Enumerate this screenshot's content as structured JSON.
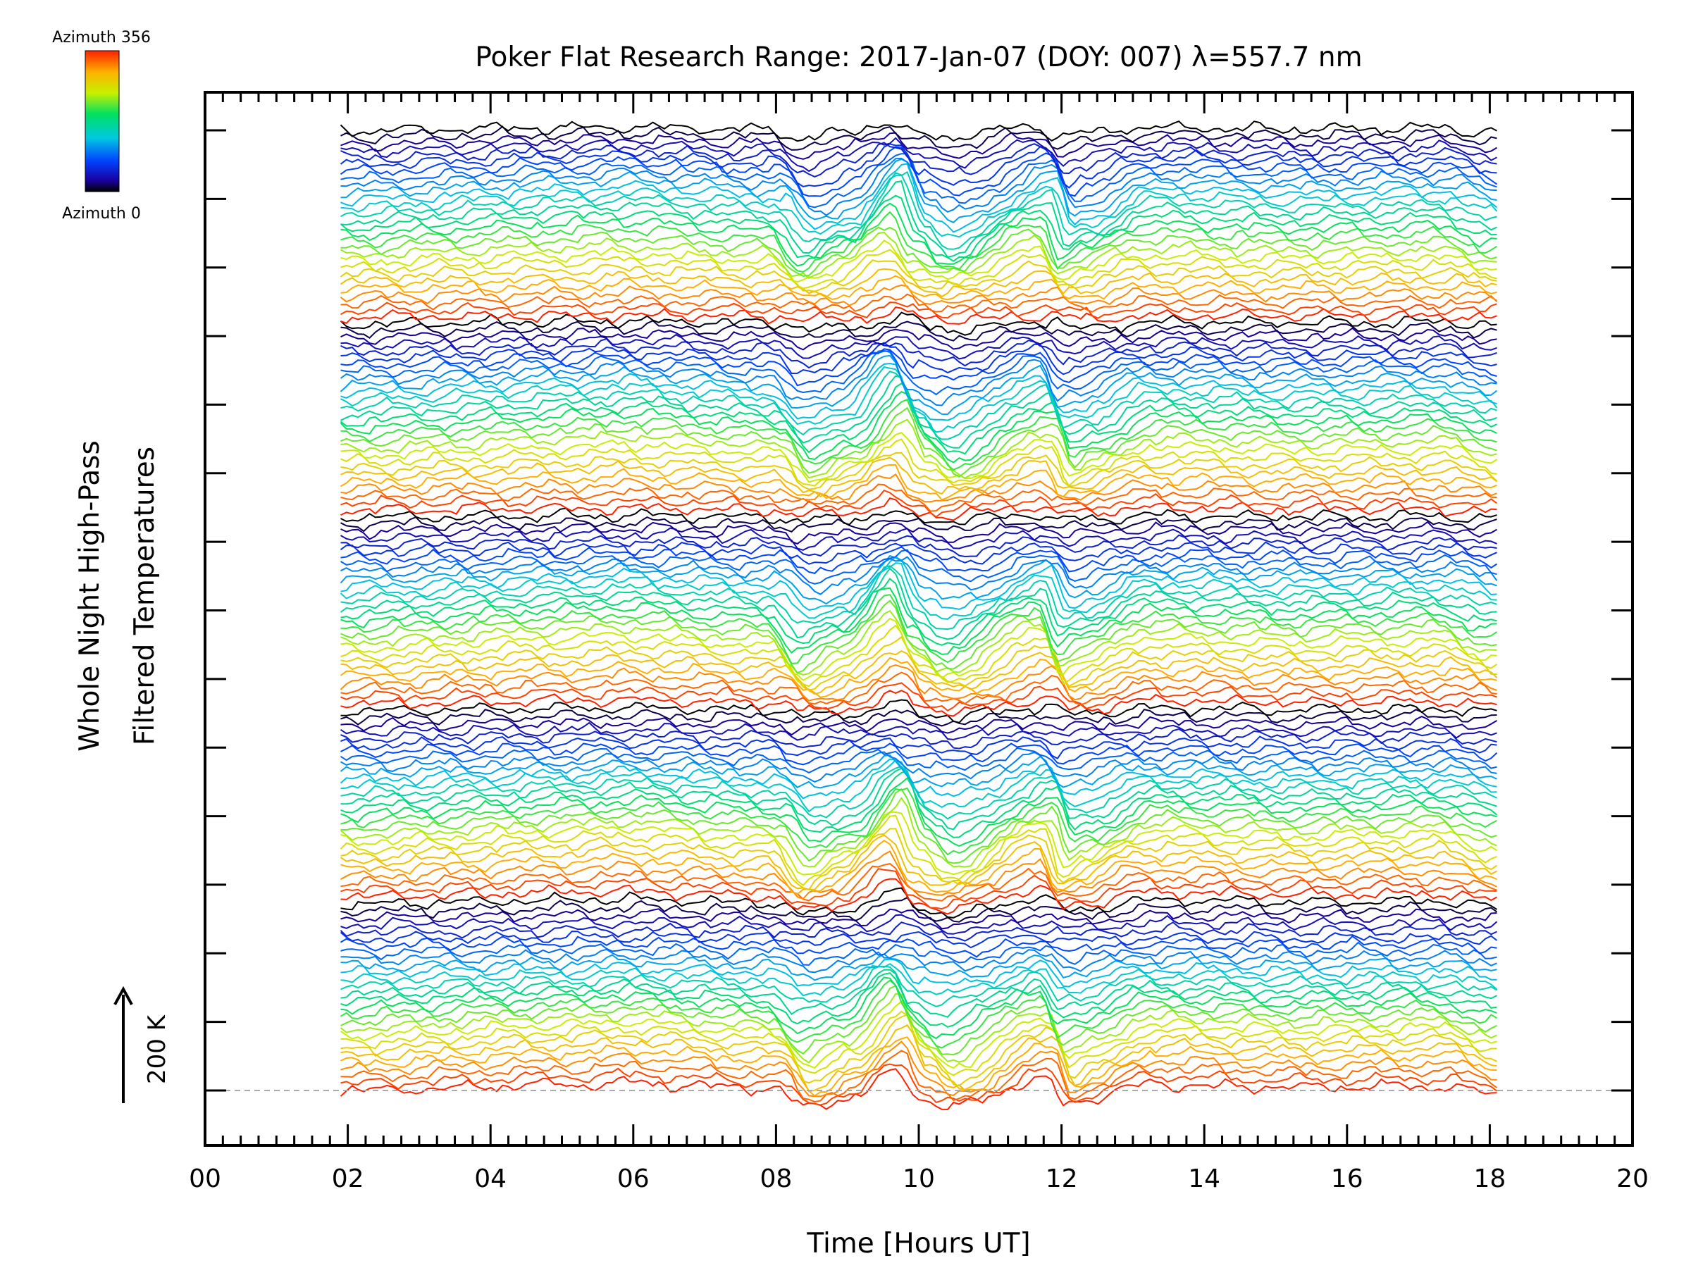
{
  "chart_data": {
    "type": "line",
    "title": "Poker Flat Research Range: 2017-Jan-07 (DOY: 007) λ=557.7 nm",
    "xlabel": "Time [Hours UT]",
    "ylabel_line1": "Whole Night High-Pass",
    "ylabel_line2": "Filtered Temperatures",
    "xlim": [
      0,
      20
    ],
    "x_tick_labels": [
      "00",
      "02",
      "04",
      "06",
      "08",
      "10",
      "12",
      "14",
      "16",
      "18",
      "20"
    ],
    "y_major_ticks": 15,
    "scale_bar_label": "200 K",
    "data_range": [
      1.9,
      18.1
    ],
    "stacked_traces": 140,
    "azimuth_range": [
      0,
      356
    ],
    "colorbar": {
      "top_label": "Azimuth 356",
      "bottom_label": "Azimuth 0"
    },
    "baseline": "dashed",
    "series_features": [
      {
        "x": 1.9,
        "y": 0
      },
      {
        "x": 5.3,
        "y": 20
      },
      {
        "x": 5.7,
        "y": 25
      },
      {
        "x": 8.0,
        "y": 5
      },
      {
        "x": 8.4,
        "y": -55
      },
      {
        "x": 9.0,
        "y": -25
      },
      {
        "x": 9.7,
        "y": 60
      },
      {
        "x": 10.0,
        "y": -20
      },
      {
        "x": 10.4,
        "y": -55
      },
      {
        "x": 11.8,
        "y": 35
      },
      {
        "x": 12.05,
        "y": -45
      },
      {
        "x": 12.3,
        "y": -30
      },
      {
        "x": 13.2,
        "y": 20
      },
      {
        "x": 15.3,
        "y": 10
      },
      {
        "x": 17.3,
        "y": 15
      },
      {
        "x": 18.1,
        "y": -15
      }
    ]
  }
}
